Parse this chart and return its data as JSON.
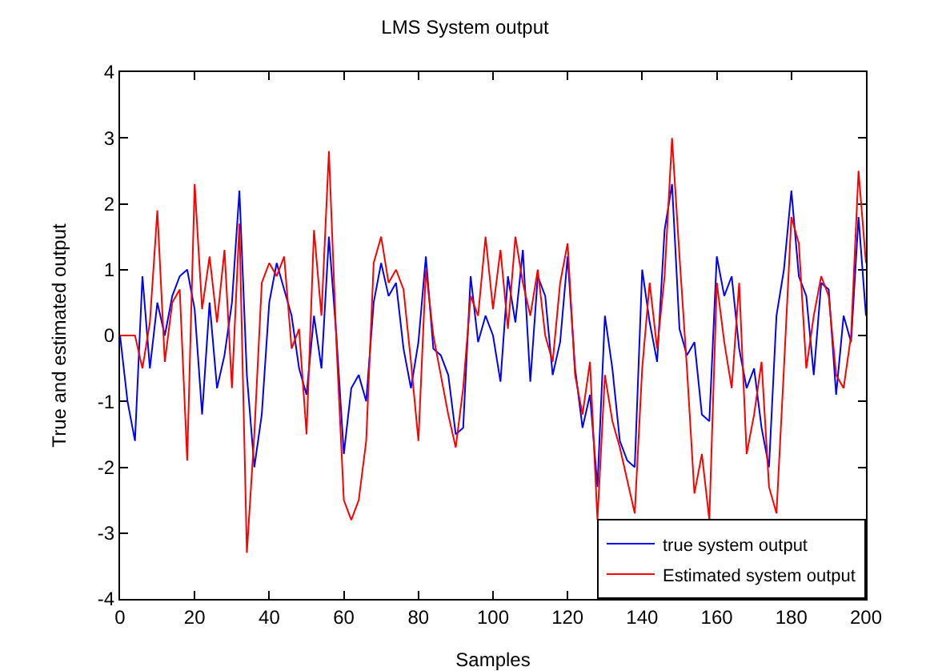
{
  "chart_data": {
    "type": "line",
    "title": "LMS System output",
    "xlabel": "Samples",
    "ylabel": "True and estimated output",
    "x": [
      0,
      2,
      4,
      6,
      8,
      10,
      12,
      14,
      16,
      18,
      20,
      22,
      24,
      26,
      28,
      30,
      32,
      34,
      36,
      38,
      40,
      42,
      44,
      46,
      48,
      50,
      52,
      54,
      56,
      58,
      60,
      62,
      64,
      66,
      68,
      70,
      72,
      74,
      76,
      78,
      80,
      82,
      84,
      86,
      88,
      90,
      92,
      94,
      96,
      98,
      100,
      102,
      104,
      106,
      108,
      110,
      112,
      114,
      116,
      118,
      120,
      122,
      124,
      126,
      128,
      130,
      132,
      134,
      136,
      138,
      140,
      142,
      144,
      146,
      148,
      150,
      152,
      154,
      156,
      158,
      160,
      162,
      164,
      166,
      168,
      170,
      172,
      174,
      176,
      178,
      180,
      182,
      184,
      186,
      188,
      190,
      192,
      194,
      196,
      198,
      200
    ],
    "series": [
      {
        "name": "true system output",
        "color": "#0000ff",
        "values": [
          0,
          -1.0,
          -1.6,
          0.9,
          -0.5,
          0.5,
          0.0,
          0.6,
          0.9,
          1.0,
          0.4,
          -1.2,
          0.5,
          -0.8,
          -0.3,
          0.5,
          2.2,
          -0.6,
          -2.0,
          -1.2,
          0.5,
          1.1,
          0.7,
          0.3,
          -0.5,
          -0.9,
          0.3,
          -0.5,
          1.5,
          0.0,
          -1.8,
          -0.8,
          -0.6,
          -1.0,
          0.5,
          1.1,
          0.6,
          0.8,
          -0.2,
          -0.8,
          -0.1,
          1.2,
          -0.2,
          -0.3,
          -0.6,
          -1.5,
          -1.4,
          0.9,
          -0.1,
          0.3,
          0.0,
          -0.7,
          0.9,
          0.2,
          1.3,
          -0.7,
          0.9,
          0.6,
          -0.6,
          -0.1,
          1.2,
          -0.5,
          -1.4,
          -0.9,
          -2.3,
          0.3,
          -0.5,
          -1.6,
          -1.9,
          -2.0,
          1.0,
          0.2,
          -0.4,
          1.6,
          2.3,
          0.1,
          -0.3,
          -0.1,
          -1.2,
          -1.3,
          1.2,
          0.6,
          0.9,
          -0.2,
          -0.8,
          -0.5,
          -1.4,
          -2.0,
          0.3,
          1.0,
          2.2,
          0.9,
          0.6,
          -0.6,
          0.8,
          0.7,
          -0.9,
          0.3,
          -0.1,
          1.8,
          0.3
        ]
      },
      {
        "name": "Estimated system output",
        "color": "#ff0000",
        "values": [
          0,
          0,
          0,
          -0.5,
          0.2,
          1.9,
          -0.4,
          0.5,
          0.7,
          -1.9,
          2.3,
          0.4,
          1.2,
          0.2,
          1.3,
          -0.8,
          1.7,
          -3.3,
          -1.5,
          0.8,
          1.1,
          0.9,
          1.2,
          -0.2,
          0.1,
          -1.5,
          1.6,
          0.3,
          2.8,
          -0.1,
          -2.5,
          -2.8,
          -2.5,
          -1.6,
          1.1,
          1.5,
          0.8,
          1.0,
          0.7,
          -0.4,
          -1.6,
          1.0,
          0.0,
          -0.6,
          -1.2,
          -1.7,
          -0.8,
          0.6,
          0.3,
          1.5,
          0.4,
          1.3,
          0.1,
          1.5,
          0.8,
          0.3,
          1.0,
          0.0,
          -0.4,
          0.8,
          1.4,
          -0.6,
          -1.2,
          -0.4,
          -2.8,
          -0.6,
          -1.3,
          -1.7,
          -2.2,
          -2.7,
          -0.5,
          0.8,
          -0.2,
          0.9,
          3.0,
          1.2,
          -0.5,
          -2.4,
          -1.8,
          -2.8,
          0.8,
          -0.1,
          -0.8,
          0.8,
          -1.8,
          -1.2,
          -0.4,
          -2.3,
          -2.7,
          -0.5,
          1.8,
          1.4,
          -0.5,
          0.3,
          0.9,
          0.6,
          -0.6,
          -0.8,
          0.0,
          2.5,
          1.1
        ]
      }
    ],
    "xlim": [
      0,
      200
    ],
    "xticks": [
      0,
      20,
      40,
      60,
      80,
      100,
      120,
      140,
      160,
      180,
      200
    ],
    "ylim": [
      -4,
      4
    ],
    "yticks": [
      -4,
      -3,
      -2,
      -1,
      0,
      1,
      2,
      3,
      4
    ],
    "grid": false,
    "legend": "bottom right",
    "marker": "none",
    "line_style": "solid"
  }
}
